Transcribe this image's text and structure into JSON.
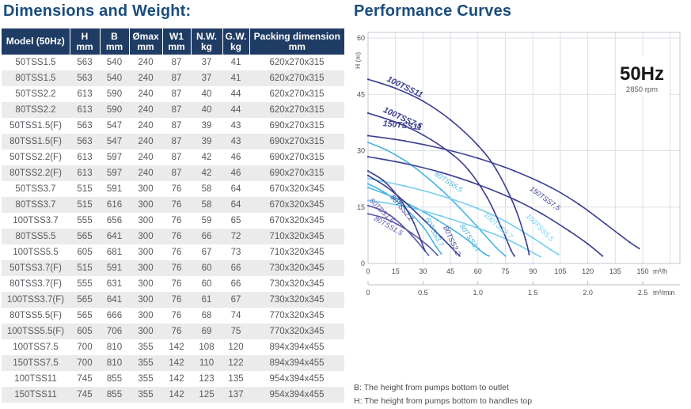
{
  "left": {
    "title": "Dimensions and Weight:",
    "table": {
      "columns": [
        {
          "label": "Model (50Hz)",
          "unit": ""
        },
        {
          "label": "H",
          "unit": "mm"
        },
        {
          "label": "B",
          "unit": "mm"
        },
        {
          "label": "Ømax",
          "unit": "mm"
        },
        {
          "label": "W1",
          "unit": "mm"
        },
        {
          "label": "N.W.",
          "unit": "kg"
        },
        {
          "label": "G.W.",
          "unit": "kg"
        },
        {
          "label": "Packing dimension",
          "unit": "mm"
        }
      ],
      "rows": [
        [
          "50TSS1.5",
          "563",
          "540",
          "240",
          "87",
          "37",
          "41",
          "620x270x315"
        ],
        [
          "80TSS1.5",
          "563",
          "540",
          "240",
          "87",
          "37",
          "41",
          "620x270x315"
        ],
        [
          "50TSS2.2",
          "613",
          "590",
          "240",
          "87",
          "40",
          "44",
          "620x270x315"
        ],
        [
          "80TSS2.2",
          "613",
          "590",
          "240",
          "87",
          "40",
          "44",
          "620x270x315"
        ],
        [
          "50TSS1.5(F)",
          "563",
          "547",
          "240",
          "87",
          "39",
          "43",
          "690x270x315"
        ],
        [
          "80TSS1.5(F)",
          "563",
          "547",
          "240",
          "87",
          "39",
          "43",
          "690x270x315"
        ],
        [
          "50TSS2.2(F)",
          "613",
          "597",
          "240",
          "87",
          "42",
          "46",
          "690x270x315"
        ],
        [
          "80TSS2.2(F)",
          "613",
          "597",
          "240",
          "87",
          "42",
          "46",
          "690x270x315"
        ],
        [
          "50TSS3.7",
          "515",
          "591",
          "300",
          "76",
          "58",
          "64",
          "670x320x345"
        ],
        [
          "80TSS3.7",
          "515",
          "616",
          "300",
          "76",
          "58",
          "64",
          "670x320x345"
        ],
        [
          "100TSS3.7",
          "555",
          "656",
          "300",
          "76",
          "59",
          "65",
          "670x320x345"
        ],
        [
          "80TSS5.5",
          "565",
          "641",
          "300",
          "76",
          "66",
          "72",
          "710x320x345"
        ],
        [
          "100TSS5.5",
          "605",
          "681",
          "300",
          "76",
          "67",
          "73",
          "710x320x345"
        ],
        [
          "50TSS3.7(F)",
          "515",
          "591",
          "300",
          "76",
          "60",
          "66",
          "730x320x345"
        ],
        [
          "80TSS3.7(F)",
          "555",
          "631",
          "300",
          "76",
          "60",
          "66",
          "730x320x345"
        ],
        [
          "100TSS3.7(F)",
          "565",
          "641",
          "300",
          "76",
          "61",
          "67",
          "730x320x345"
        ],
        [
          "80TSS5.5(F)",
          "565",
          "666",
          "300",
          "76",
          "68",
          "74",
          "770x320x345"
        ],
        [
          "100TSS5.5(F)",
          "605",
          "706",
          "300",
          "76",
          "69",
          "75",
          "770x320x345"
        ],
        [
          "100TSS7.5",
          "700",
          "810",
          "355",
          "142",
          "108",
          "120",
          "894x394x455"
        ],
        [
          "150TSS7.5",
          "700",
          "810",
          "355",
          "142",
          "110",
          "122",
          "894x394x455"
        ],
        [
          "100TSS11",
          "745",
          "855",
          "355",
          "142",
          "123",
          "135",
          "954x394x455"
        ],
        [
          "150TSS11",
          "745",
          "855",
          "355",
          "142",
          "125",
          "137",
          "954x394x455"
        ]
      ]
    }
  },
  "right": {
    "title": "Performance Curves",
    "footnotes": [
      "B: The height from pumps bottom to outlet",
      "H: The height from pumps bottom to handles top"
    ]
  },
  "chart_data": {
    "type": "line",
    "title": "Performance Curves",
    "frequency_label": "50Hz",
    "speed_label": "2850 rpm",
    "ylabel": "H (m)",
    "xlabel_hour": "m³/h",
    "xlabel_min": "m³/min",
    "xlim": [
      0,
      150
    ],
    "ylim": [
      0,
      60
    ],
    "grid": true,
    "y_ticks": [
      0,
      15,
      30,
      45,
      60
    ],
    "x_ticks_h": [
      0,
      15,
      30,
      45,
      60,
      75,
      90,
      105,
      120,
      135,
      150
    ],
    "x_ticks_min": [
      "0",
      "0.5",
      "1.0",
      "1.5",
      "2.0",
      "2.5"
    ],
    "grid_color": "#dbdfe6",
    "border_color": "#c3c9d2",
    "axis_text_color": "#4c4c4c",
    "series": [
      {
        "name": "80TSS5.5",
        "color": "#47b4e1",
        "points": [
          [
            0,
            32.2
          ],
          [
            10,
            30.2
          ],
          [
            20,
            27.4
          ],
          [
            30,
            23.8
          ],
          [
            40,
            19.6
          ],
          [
            50,
            14.8
          ],
          [
            60,
            9.6
          ],
          [
            70,
            4.2
          ],
          [
            75,
            2
          ]
        ],
        "label": {
          "x": 36,
          "y": 23.5,
          "angle": 33,
          "bold": false
        }
      },
      {
        "name": "100TSS5.5",
        "color": "#74cdf0",
        "points": [
          [
            0,
            22.6
          ],
          [
            20,
            20.6
          ],
          [
            40,
            18
          ],
          [
            60,
            14.6
          ],
          [
            75,
            11.2
          ],
          [
            90,
            6.8
          ],
          [
            100,
            3.6
          ],
          [
            104,
            2.4
          ]
        ],
        "label": {
          "x": 86,
          "y": 12.5,
          "angle": 45,
          "bold": false
        }
      },
      {
        "name": "50TSS3.7",
        "color": "#47b4e1",
        "points": [
          [
            0,
            21.2
          ],
          [
            10,
            18.6
          ],
          [
            20,
            14.8
          ],
          [
            30,
            9.8
          ],
          [
            37,
            4.6
          ],
          [
            40,
            2.6
          ]
        ],
        "label": {
          "x": 31,
          "y": 11.8,
          "angle": 62,
          "bold": false
        }
      },
      {
        "name": "80TSS3.7",
        "color": "#47b4e1",
        "points": [
          [
            0,
            20.2
          ],
          [
            15,
            17.4
          ],
          [
            30,
            13.8
          ],
          [
            45,
            9.4
          ],
          [
            55,
            6
          ],
          [
            63,
            2.8
          ],
          [
            66,
            2
          ]
        ],
        "label": {
          "x": 50,
          "y": 10,
          "angle": 58,
          "bold": false
        }
      },
      {
        "name": "100TSS3.7",
        "color": "#74cdf0",
        "points": [
          [
            0,
            16.8
          ],
          [
            20,
            15.2
          ],
          [
            40,
            12.6
          ],
          [
            60,
            9.4
          ],
          [
            75,
            6.6
          ],
          [
            88,
            3.4
          ],
          [
            94,
            1.8
          ]
        ],
        "label": {
          "x": 63,
          "y": 12.8,
          "angle": 42,
          "bold": false
        }
      },
      {
        "name": "50TSS1.5",
        "color": "#5b58a8",
        "points": [
          [
            0,
            15.4
          ],
          [
            6,
            14.4
          ],
          [
            12,
            12.8
          ],
          [
            18,
            10.4
          ],
          [
            24,
            7.4
          ],
          [
            30,
            4
          ],
          [
            33,
            2.2
          ]
        ],
        "label": {
          "x": 0.5,
          "y": 16.6,
          "angle": 45,
          "bold": false
        }
      },
      {
        "name": "80TSS1.5",
        "color": "#5b58a8",
        "points": [
          [
            0,
            13.2
          ],
          [
            8,
            12.2
          ],
          [
            16,
            10.4
          ],
          [
            24,
            8
          ],
          [
            32,
            5
          ],
          [
            38,
            2.2
          ]
        ],
        "label": {
          "x": 3,
          "y": 11.6,
          "angle": 30,
          "bold": false
        }
      },
      {
        "name": "50TSS2.2",
        "color": "#3a3e91",
        "points": [
          [
            0,
            24.6
          ],
          [
            8,
            22.2
          ],
          [
            14,
            19.2
          ],
          [
            20,
            15.2
          ],
          [
            25,
            10.8
          ],
          [
            29,
            6
          ],
          [
            31,
            3.4
          ]
        ],
        "label": {
          "x": 12,
          "y": 17.6,
          "angle": 50,
          "bold": false
        }
      },
      {
        "name": "80TSS2.2",
        "color": "#3a3e91",
        "points": [
          [
            0,
            23.4
          ],
          [
            10,
            20.4
          ],
          [
            20,
            16.4
          ],
          [
            30,
            11.8
          ],
          [
            40,
            7
          ],
          [
            48,
            3
          ],
          [
            50,
            2
          ]
        ],
        "label": {
          "x": 41,
          "y": 9.6,
          "angle": 65,
          "bold": false
        }
      },
      {
        "name": "150TSS7.5",
        "color": "#3a3e91",
        "points": [
          [
            0,
            28.4
          ],
          [
            20,
            26.6
          ],
          [
            40,
            24.2
          ],
          [
            60,
            21
          ],
          [
            80,
            17
          ],
          [
            95,
            13.2
          ],
          [
            110,
            8.6
          ],
          [
            120,
            5.2
          ],
          [
            128,
            2
          ]
        ],
        "label": {
          "x": 88,
          "y": 19.6,
          "angle": 36,
          "bold": false
        }
      },
      {
        "name": "150TSS11",
        "color": "#3a3e91",
        "points": [
          [
            0,
            34
          ],
          [
            20,
            32.6
          ],
          [
            40,
            30.6
          ],
          [
            60,
            28
          ],
          [
            80,
            24.6
          ],
          [
            100,
            20.2
          ],
          [
            115,
            15.8
          ],
          [
            130,
            10.4
          ],
          [
            143,
            5.6
          ],
          [
            148,
            4
          ]
        ],
        "label": {
          "x": 8,
          "y": 36.6,
          "angle": 6,
          "bold": true
        }
      },
      {
        "name": "100TSS7.5",
        "color": "#3a3e91",
        "points": [
          [
            0,
            40
          ],
          [
            15,
            37.6
          ],
          [
            30,
            34.2
          ],
          [
            45,
            29.4
          ],
          [
            55,
            24.8
          ],
          [
            65,
            17.6
          ],
          [
            73,
            9.4
          ],
          [
            78,
            3.6
          ],
          [
            80,
            2
          ]
        ],
        "label": {
          "x": 8,
          "y": 40.4,
          "angle": 25,
          "bold": true
        }
      },
      {
        "name": "100TSS11",
        "color": "#3a3e91",
        "points": [
          [
            0,
            49
          ],
          [
            15,
            46.6
          ],
          [
            30,
            43.2
          ],
          [
            45,
            38.2
          ],
          [
            60,
            31.4
          ],
          [
            70,
            25
          ],
          [
            80,
            15.2
          ],
          [
            86,
            6.4
          ],
          [
            88,
            2.4
          ]
        ],
        "label": {
          "x": 10,
          "y": 48.6,
          "angle": 26,
          "bold": true
        }
      }
    ]
  }
}
